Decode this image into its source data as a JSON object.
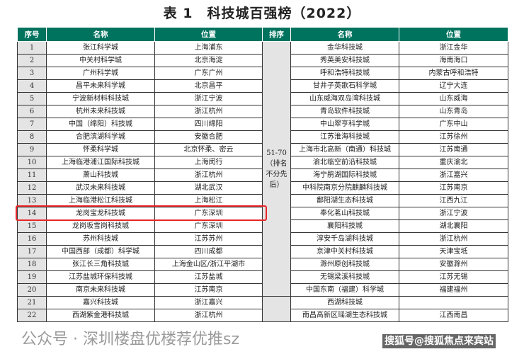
{
  "title": "表 1　科技城百强榜（2022）",
  "headers": {
    "left": [
      "序号",
      "名称",
      "位置"
    ],
    "right": [
      "排序",
      "名称",
      "位置"
    ]
  },
  "rank_group_label": "51-70（排名不分先后）",
  "left_rows": [
    [
      "1",
      "张江科学城",
      "上海浦东"
    ],
    [
      "2",
      "中关村科学城",
      "北京海淀"
    ],
    [
      "3",
      "广州科学城",
      "广东广州"
    ],
    [
      "4",
      "昌平未来科学城",
      "北京昌平"
    ],
    [
      "5",
      "宁波新材料科技城",
      "浙江宁波"
    ],
    [
      "6",
      "杭州未来科技城",
      "浙江杭州"
    ],
    [
      "7",
      "中国（绵阳）科技城",
      "四川绵阳"
    ],
    [
      "8",
      "合肥滨湖科学城",
      "安徽合肥"
    ],
    [
      "9",
      "怀柔科学城",
      "北京怀柔、密云"
    ],
    [
      "10",
      "上海临港浦江国际科技城",
      "上海闵行"
    ],
    [
      "11",
      "萧山科技城",
      "浙江杭州"
    ],
    [
      "12",
      "武汉未来科技城",
      "湖北武汉"
    ],
    [
      "13",
      "上海临港松江科技城",
      "上海松江"
    ],
    [
      "14",
      "龙岗宝龙科技城",
      "广东深圳"
    ],
    [
      "15",
      "龙岗坂雪岗科技城",
      "广东深圳"
    ],
    [
      "16",
      "苏州科技城",
      "江苏苏州"
    ],
    [
      "17",
      "中国西部（成都）科学城",
      "四川成都"
    ],
    [
      "18",
      "张江长三角科技城",
      "上海金山区/浙江平湖市"
    ],
    [
      "19",
      "江苏盐城环保科技城",
      "江苏盐城"
    ],
    [
      "20",
      "南京未来科技城",
      "江苏南京"
    ],
    [
      "21",
      "嘉兴科技城",
      "浙江嘉兴"
    ],
    [
      "22",
      "西湖紫金港科技城",
      "浙江杭州"
    ]
  ],
  "right_rows": [
    [
      "金华科技城",
      "浙江金华"
    ],
    [
      "秀英美安科技城",
      "海南海口"
    ],
    [
      "呼和浩特科技城",
      "内蒙古呼和浩特"
    ],
    [
      "甘井子英歌石科学城",
      "辽宁大连"
    ],
    [
      "山东威海双岛湾科技城",
      "山东威海"
    ],
    [
      "青岛软件科技城",
      "山东青岛"
    ],
    [
      "中山翠亨科学城",
      "广东中山"
    ],
    [
      "江苏淮海科技城",
      "江苏徐州"
    ],
    [
      "上海市北高新（南通）科技城",
      "江苏南通"
    ],
    [
      "渝北临空前沿科技城",
      "重庆渝北"
    ],
    [
      "海宁鹃湖国际科技城",
      "浙江嘉兴"
    ],
    [
      "中科院南京分院麒麟科技城",
      "江苏南京"
    ],
    [
      "鄱阳湖生态科技城",
      "江西九江"
    ],
    [
      "奉化茗山科技城",
      "浙江宁波"
    ],
    [
      "襄阳科技城",
      "湖北襄阳"
    ],
    [
      "淳安千岛湖科技城",
      "浙江杭州"
    ],
    [
      "京津中关村科技城",
      "天津宝坻"
    ],
    [
      "滁州原创科技城",
      "安徽滁州"
    ],
    [
      "无锡梁溪科技城",
      "江苏无锡"
    ],
    [
      "中国东南（福建）科学城",
      "福建福州"
    ],
    [
      "西湖科技城",
      ""
    ],
    [
      "南昌高新区瑶湖生态科技城",
      "江西南昌"
    ]
  ],
  "highlight_color": "#e8262a",
  "header_color": "#00735f",
  "watermarks": [
    "公众号 · 深圳楼盘优楼荐优推sz",
    "搜狐号@搜狐焦点来宾站"
  ]
}
